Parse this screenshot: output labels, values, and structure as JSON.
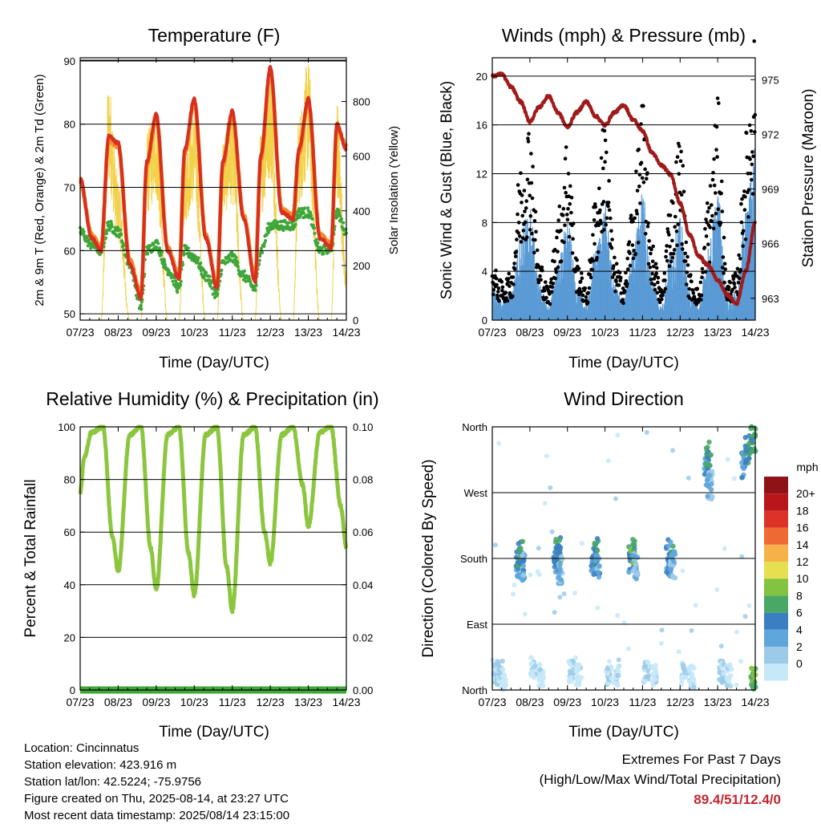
{
  "colors": {
    "temp_2m": "#d7301f",
    "temp_9m": "#f28b30",
    "dewpoint": "#3fa63a",
    "solar": "#f2d24b",
    "wind_gust": "#000000",
    "wind_sonic": "#5b9bd5",
    "pressure": "#a11a1a",
    "rh": "#8cc63f",
    "precip": "#3fa63a",
    "grid": "#000000"
  },
  "legend_speed_colors": [
    "#c6e8f7",
    "#9ccbea",
    "#5fa6dc",
    "#3b7fc2",
    "#4aa866",
    "#82c341",
    "#e6e050",
    "#f7b149",
    "#ef6a32",
    "#dc3328",
    "#b9161c",
    "#8e1216"
  ],
  "x_ticks": [
    "07/23",
    "08/23",
    "09/23",
    "10/23",
    "11/23",
    "12/23",
    "13/23",
    "14/23"
  ],
  "panels": {
    "temperature": {
      "title": "Temperature (F)",
      "xlabel": "Time (Day/UTC)",
      "ylabel": "2m & 9m T (Red, Orange) & 2m Td (Green)",
      "ylabel_right": "Solar Insolation (Yellow)",
      "y_ticks": [
        "50",
        "60",
        "70",
        "80",
        "90"
      ],
      "y2_ticks": [
        "0",
        "200",
        "400",
        "600",
        "800"
      ]
    },
    "winds": {
      "title": "Winds (mph) & Pressure (mb)",
      "xlabel": "Time (Day/UTC)",
      "ylabel": "Sonic Wind & Gust (Blue, Black)",
      "ylabel_right": "Station Pressure (Maroon)",
      "y_ticks": [
        "0",
        "4",
        "8",
        "12",
        "16",
        "20"
      ],
      "y2_ticks": [
        "963",
        "966",
        "969",
        "972",
        "975"
      ]
    },
    "humidity": {
      "title": "Relative Humidity (%) & Precipitation (in)",
      "xlabel": "Time (Day/UTC)",
      "ylabel": "Percent & Total Rainfall",
      "y_ticks": [
        "0",
        "20",
        "40",
        "60",
        "80",
        "100"
      ],
      "y2_ticks": [
        "0.00",
        "0.02",
        "0.04",
        "0.06",
        "0.08",
        "0.10"
      ]
    },
    "direction": {
      "title": "Wind Direction",
      "xlabel": "Time (Day/UTC)",
      "ylabel": "Direction (Colored By Speed)",
      "y_ticks": [
        "North",
        "East",
        "South",
        "West",
        "North"
      ],
      "legend_title": "mph",
      "legend_labels": [
        "0",
        "2",
        "4",
        "6",
        "8",
        "10",
        "12",
        "14",
        "16",
        "18",
        "20+"
      ]
    }
  },
  "info": {
    "location": "Location: Cincinnatus",
    "elevation": "Station elevation: 423.916 m",
    "latlon": "Station lat/lon: 42.5224; -75.9756",
    "created": "Figure created on Thu, 2025-08-14, at 23:27 UTC",
    "recent": "Most recent data timestamp: 2025/08/14 23:15:00"
  },
  "extremes": {
    "line1": "Extremes For Past 7 Days",
    "line2": "(High/Low/Max Wind/Total Precipitation)",
    "value": "89.4/51/12.4/0"
  },
  "chart_data": [
    {
      "type": "line",
      "title": "Temperature (F)",
      "xlabel": "Time (Day/UTC)",
      "ylabel": "2m & 9m T (Red, Orange) & 2m Td (Green)",
      "ylabel_right": "Solar Insolation (Yellow)",
      "x": [
        7.0,
        7.3,
        7.55,
        7.75,
        8.0,
        8.3,
        8.6,
        8.75,
        9.0,
        9.3,
        9.6,
        9.75,
        10.0,
        10.3,
        10.6,
        10.75,
        11.0,
        11.3,
        11.6,
        11.75,
        12.0,
        12.3,
        12.6,
        12.75,
        13.0,
        13.3,
        13.6,
        13.75,
        14.0
      ],
      "ylim": [
        49,
        90.5
      ],
      "y2lim": [
        0,
        960
      ],
      "series": [
        {
          "name": "2m T",
          "values": [
            71.5,
            62,
            60,
            78,
            77,
            58,
            52.5,
            74,
            81.5,
            60,
            55.5,
            76,
            84,
            62,
            54,
            74,
            82,
            65,
            55,
            75,
            89,
            66,
            65,
            76,
            84,
            62,
            60.5,
            80,
            76
          ]
        },
        {
          "name": "9m T",
          "values": [
            71,
            62.5,
            60.5,
            77.5,
            76.5,
            58.5,
            53,
            73.5,
            81,
            60.5,
            56,
            75.5,
            83.5,
            62.5,
            54.5,
            73.5,
            81.5,
            65.5,
            55.5,
            74.5,
            88.5,
            66.5,
            65.5,
            75.5,
            83.5,
            62.5,
            61,
            79.5,
            76.5
          ]
        },
        {
          "name": "2m Td",
          "values": [
            63,
            61,
            60,
            64,
            63,
            58,
            51,
            60,
            61,
            57,
            54,
            60,
            59,
            56,
            53,
            58,
            59,
            56,
            54,
            60,
            64,
            64,
            64,
            66,
            66,
            60,
            60.5,
            66,
            63
          ]
        },
        {
          "name": "Solar",
          "values": [
            0,
            0,
            0,
            880,
            520,
            0,
            0,
            700,
            790,
            0,
            0,
            640,
            780,
            0,
            0,
            690,
            770,
            0,
            0,
            700,
            940,
            0,
            0,
            760,
            960,
            0,
            0,
            820,
            180
          ]
        }
      ]
    },
    {
      "type": "scatter",
      "title": "Winds (mph) & Pressure (mb)",
      "xlabel": "Time (Day/UTC)",
      "ylabel": "Sonic Wind & Gust (Blue, Black)",
      "ylabel_right": "Station Pressure (Maroon)",
      "x": [
        7.0,
        7.25,
        7.5,
        7.75,
        8.0,
        8.25,
        8.5,
        8.75,
        9.0,
        9.25,
        9.5,
        9.75,
        10.0,
        10.25,
        10.5,
        10.75,
        11.0,
        11.25,
        11.5,
        11.75,
        12.0,
        12.25,
        12.5,
        12.75,
        13.0,
        13.25,
        13.5,
        13.75,
        14.0
      ],
      "ylim": [
        0,
        21.5
      ],
      "y2lim": [
        961.8,
        976.2
      ],
      "series": [
        {
          "name": "Gust",
          "values": [
            3.5,
            2.5,
            3,
            10,
            13,
            4,
            2,
            7,
            12,
            4,
            2,
            8,
            13,
            4,
            2.5,
            8,
            14,
            5,
            2,
            8,
            12,
            3,
            2,
            8,
            14,
            2.5,
            3,
            12,
            19
          ]
        },
        {
          "name": "Sonic",
          "values": [
            2.5,
            1.5,
            2,
            6,
            8,
            2.5,
            1,
            4,
            7,
            2.5,
            1,
            5,
            8,
            2.5,
            1.5,
            5,
            9,
            3,
            1,
            5,
            7,
            2,
            1,
            5,
            9,
            1.5,
            2,
            8,
            12
          ]
        },
        {
          "name": "Pressure",
          "values": [
            975.2,
            975.3,
            974.6,
            973.8,
            972.7,
            973.5,
            974.1,
            973.2,
            972.4,
            973.2,
            973.8,
            973.0,
            972.5,
            973.2,
            973.6,
            972.8,
            972.2,
            971.0,
            970.3,
            969.8,
            968.2,
            966.5,
            965.3,
            964.8,
            964.0,
            963.2,
            962.7,
            964.5,
            967.2
          ]
        }
      ]
    },
    {
      "type": "line",
      "title": "Relative Humidity (%) & Precipitation (in)",
      "xlabel": "Time (Day/UTC)",
      "ylabel": "Percent & Total Rainfall",
      "x": [
        7.0,
        7.1,
        7.3,
        7.6,
        7.85,
        8.0,
        8.3,
        8.6,
        8.85,
        9.0,
        9.3,
        9.6,
        9.85,
        10.0,
        10.3,
        10.6,
        10.85,
        11.0,
        11.3,
        11.6,
        11.85,
        12.0,
        12.3,
        12.6,
        12.85,
        13.0,
        13.3,
        13.6,
        13.85,
        14.0
      ],
      "ylim": [
        0,
        100
      ],
      "y2lim": [
        0,
        0.1
      ],
      "series": [
        {
          "name": "RH",
          "values": [
            75,
            88,
            98,
            100,
            58,
            45,
            97,
            100,
            54,
            38,
            97,
            100,
            52,
            36,
            97,
            100,
            47,
            30,
            97,
            100,
            60,
            48,
            97,
            100,
            78,
            62,
            98,
            100,
            70,
            54
          ]
        },
        {
          "name": "Precipitation",
          "values": [
            0,
            0,
            0,
            0,
            0,
            0,
            0,
            0,
            0,
            0,
            0,
            0,
            0,
            0,
            0,
            0,
            0,
            0,
            0,
            0,
            0,
            0,
            0,
            0,
            0,
            0,
            0,
            0,
            0,
            0
          ]
        }
      ]
    },
    {
      "type": "scatter",
      "title": "Wind Direction",
      "xlabel": "Time (Day/UTC)",
      "ylabel": "Direction (Colored By Speed)",
      "ylim": [
        0,
        360
      ],
      "points": [
        {
          "day": 7.1,
          "dir": 20,
          "speed": 2
        },
        {
          "day": 7.2,
          "dir": 25,
          "speed": 3
        },
        {
          "day": 7.3,
          "dir": 15,
          "speed": 1
        },
        {
          "day": 7.7,
          "dir": 175,
          "speed": 6
        },
        {
          "day": 7.75,
          "dir": 185,
          "speed": 8
        },
        {
          "day": 7.8,
          "dir": 170,
          "speed": 5
        },
        {
          "day": 8.1,
          "dir": 30,
          "speed": 2
        },
        {
          "day": 8.3,
          "dir": 20,
          "speed": 1
        },
        {
          "day": 8.7,
          "dir": 180,
          "speed": 7
        },
        {
          "day": 8.75,
          "dir": 190,
          "speed": 8
        },
        {
          "day": 8.8,
          "dir": 165,
          "speed": 4
        },
        {
          "day": 9.1,
          "dir": 25,
          "speed": 2
        },
        {
          "day": 9.3,
          "dir": 20,
          "speed": 1
        },
        {
          "day": 9.7,
          "dir": 178,
          "speed": 6
        },
        {
          "day": 9.75,
          "dir": 188,
          "speed": 8
        },
        {
          "day": 9.8,
          "dir": 172,
          "speed": 5
        },
        {
          "day": 10.1,
          "dir": 22,
          "speed": 2
        },
        {
          "day": 10.3,
          "dir": 18,
          "speed": 1
        },
        {
          "day": 10.7,
          "dir": 180,
          "speed": 7
        },
        {
          "day": 10.75,
          "dir": 192,
          "speed": 9
        },
        {
          "day": 10.8,
          "dir": 168,
          "speed": 4
        },
        {
          "day": 11.1,
          "dir": 24,
          "speed": 2
        },
        {
          "day": 11.3,
          "dir": 20,
          "speed": 1
        },
        {
          "day": 11.7,
          "dir": 176,
          "speed": 6
        },
        {
          "day": 11.75,
          "dir": 186,
          "speed": 7
        },
        {
          "day": 11.8,
          "dir": 170,
          "speed": 4
        },
        {
          "day": 12.1,
          "dir": 22,
          "speed": 2
        },
        {
          "day": 12.3,
          "dir": 18,
          "speed": 1
        },
        {
          "day": 12.7,
          "dir": 300,
          "speed": 6
        },
        {
          "day": 12.75,
          "dir": 320,
          "speed": 8
        },
        {
          "day": 12.8,
          "dir": 280,
          "speed": 4
        },
        {
          "day": 13.1,
          "dir": 25,
          "speed": 2
        },
        {
          "day": 13.3,
          "dir": 20,
          "speed": 1
        },
        {
          "day": 13.7,
          "dir": 310,
          "speed": 6
        },
        {
          "day": 13.8,
          "dir": 330,
          "speed": 8
        },
        {
          "day": 13.95,
          "dir": 345,
          "speed": 9
        },
        {
          "day": 13.95,
          "dir": 15,
          "speed": 10
        }
      ]
    }
  ]
}
